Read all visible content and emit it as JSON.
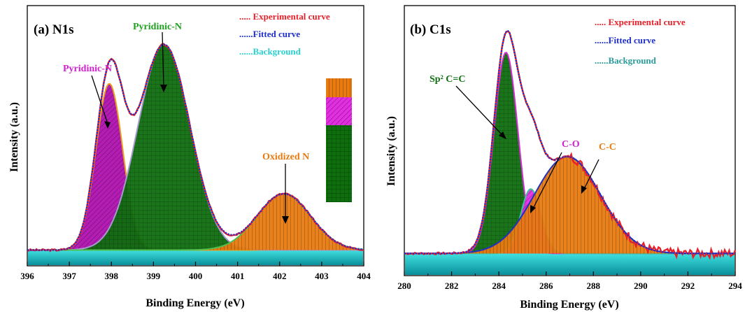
{
  "chart_data": [
    {
      "type": "area",
      "title": "(a) N1s",
      "xlabel": "Binding Energy (eV)",
      "ylabel": "Intensity (a.u.)",
      "xlim": [
        396,
        404
      ],
      "ylim": [
        0,
        1
      ],
      "xticks": [
        "396",
        "397",
        "398",
        "399",
        "400",
        "401",
        "402",
        "403",
        "404"
      ],
      "legend": [
        "..... Experimental curve",
        "......Fitted curve",
        "......Background"
      ],
      "legend_colors": [
        "#e8202a",
        "#1f2fc8",
        "#2ad0d0"
      ],
      "legend_position": "top-right",
      "peaks": [
        {
          "name": "Pyridinic-N",
          "center": 397.95,
          "height": 0.68,
          "fwhm": 0.75,
          "color": "#b010b0"
        },
        {
          "name": "Pyridinic-N",
          "center": 399.25,
          "height": 0.84,
          "fwhm": 1.45,
          "color": "#0e6e0e"
        },
        {
          "name": "Oxidized N",
          "center": 402.1,
          "height": 0.23,
          "fwhm": 1.5,
          "color": "#e87a10"
        }
      ],
      "annotations": [
        "Pyridinic-N",
        "Pyridinic-N",
        "Oxidized N"
      ],
      "background_level": 0.03
    },
    {
      "type": "area",
      "title": "(b) C1s",
      "xlabel": "Binding Energy (eV)",
      "ylabel": "Intensity (a.u.)",
      "xlim": [
        280,
        294
      ],
      "ylim": [
        0,
        1
      ],
      "xticks": [
        "280",
        "282",
        "284",
        "286",
        "288",
        "290",
        "292",
        "294"
      ],
      "legend": [
        "..... Experimental curve",
        "......Fitted curve",
        "......Background"
      ],
      "legend_colors": [
        "#e8202a",
        "#1f2fc8",
        "#2ad0d0"
      ],
      "legend_position": "top-right",
      "peaks": [
        {
          "name": "Sp² C=C",
          "center": 284.3,
          "height": 0.81,
          "fwhm": 1.2,
          "color": "#0e6e0e"
        },
        {
          "name": "C-O",
          "center": 285.35,
          "height": 0.26,
          "fwhm": 1.0,
          "color": "#d020d0"
        },
        {
          "name": "C-C",
          "center": 286.9,
          "height": 0.39,
          "fwhm": 3.3,
          "color": "#e87a10"
        }
      ],
      "annotations": [
        "Sp² C=C",
        "C-O",
        "C-C"
      ],
      "background_level": 0.03
    }
  ]
}
